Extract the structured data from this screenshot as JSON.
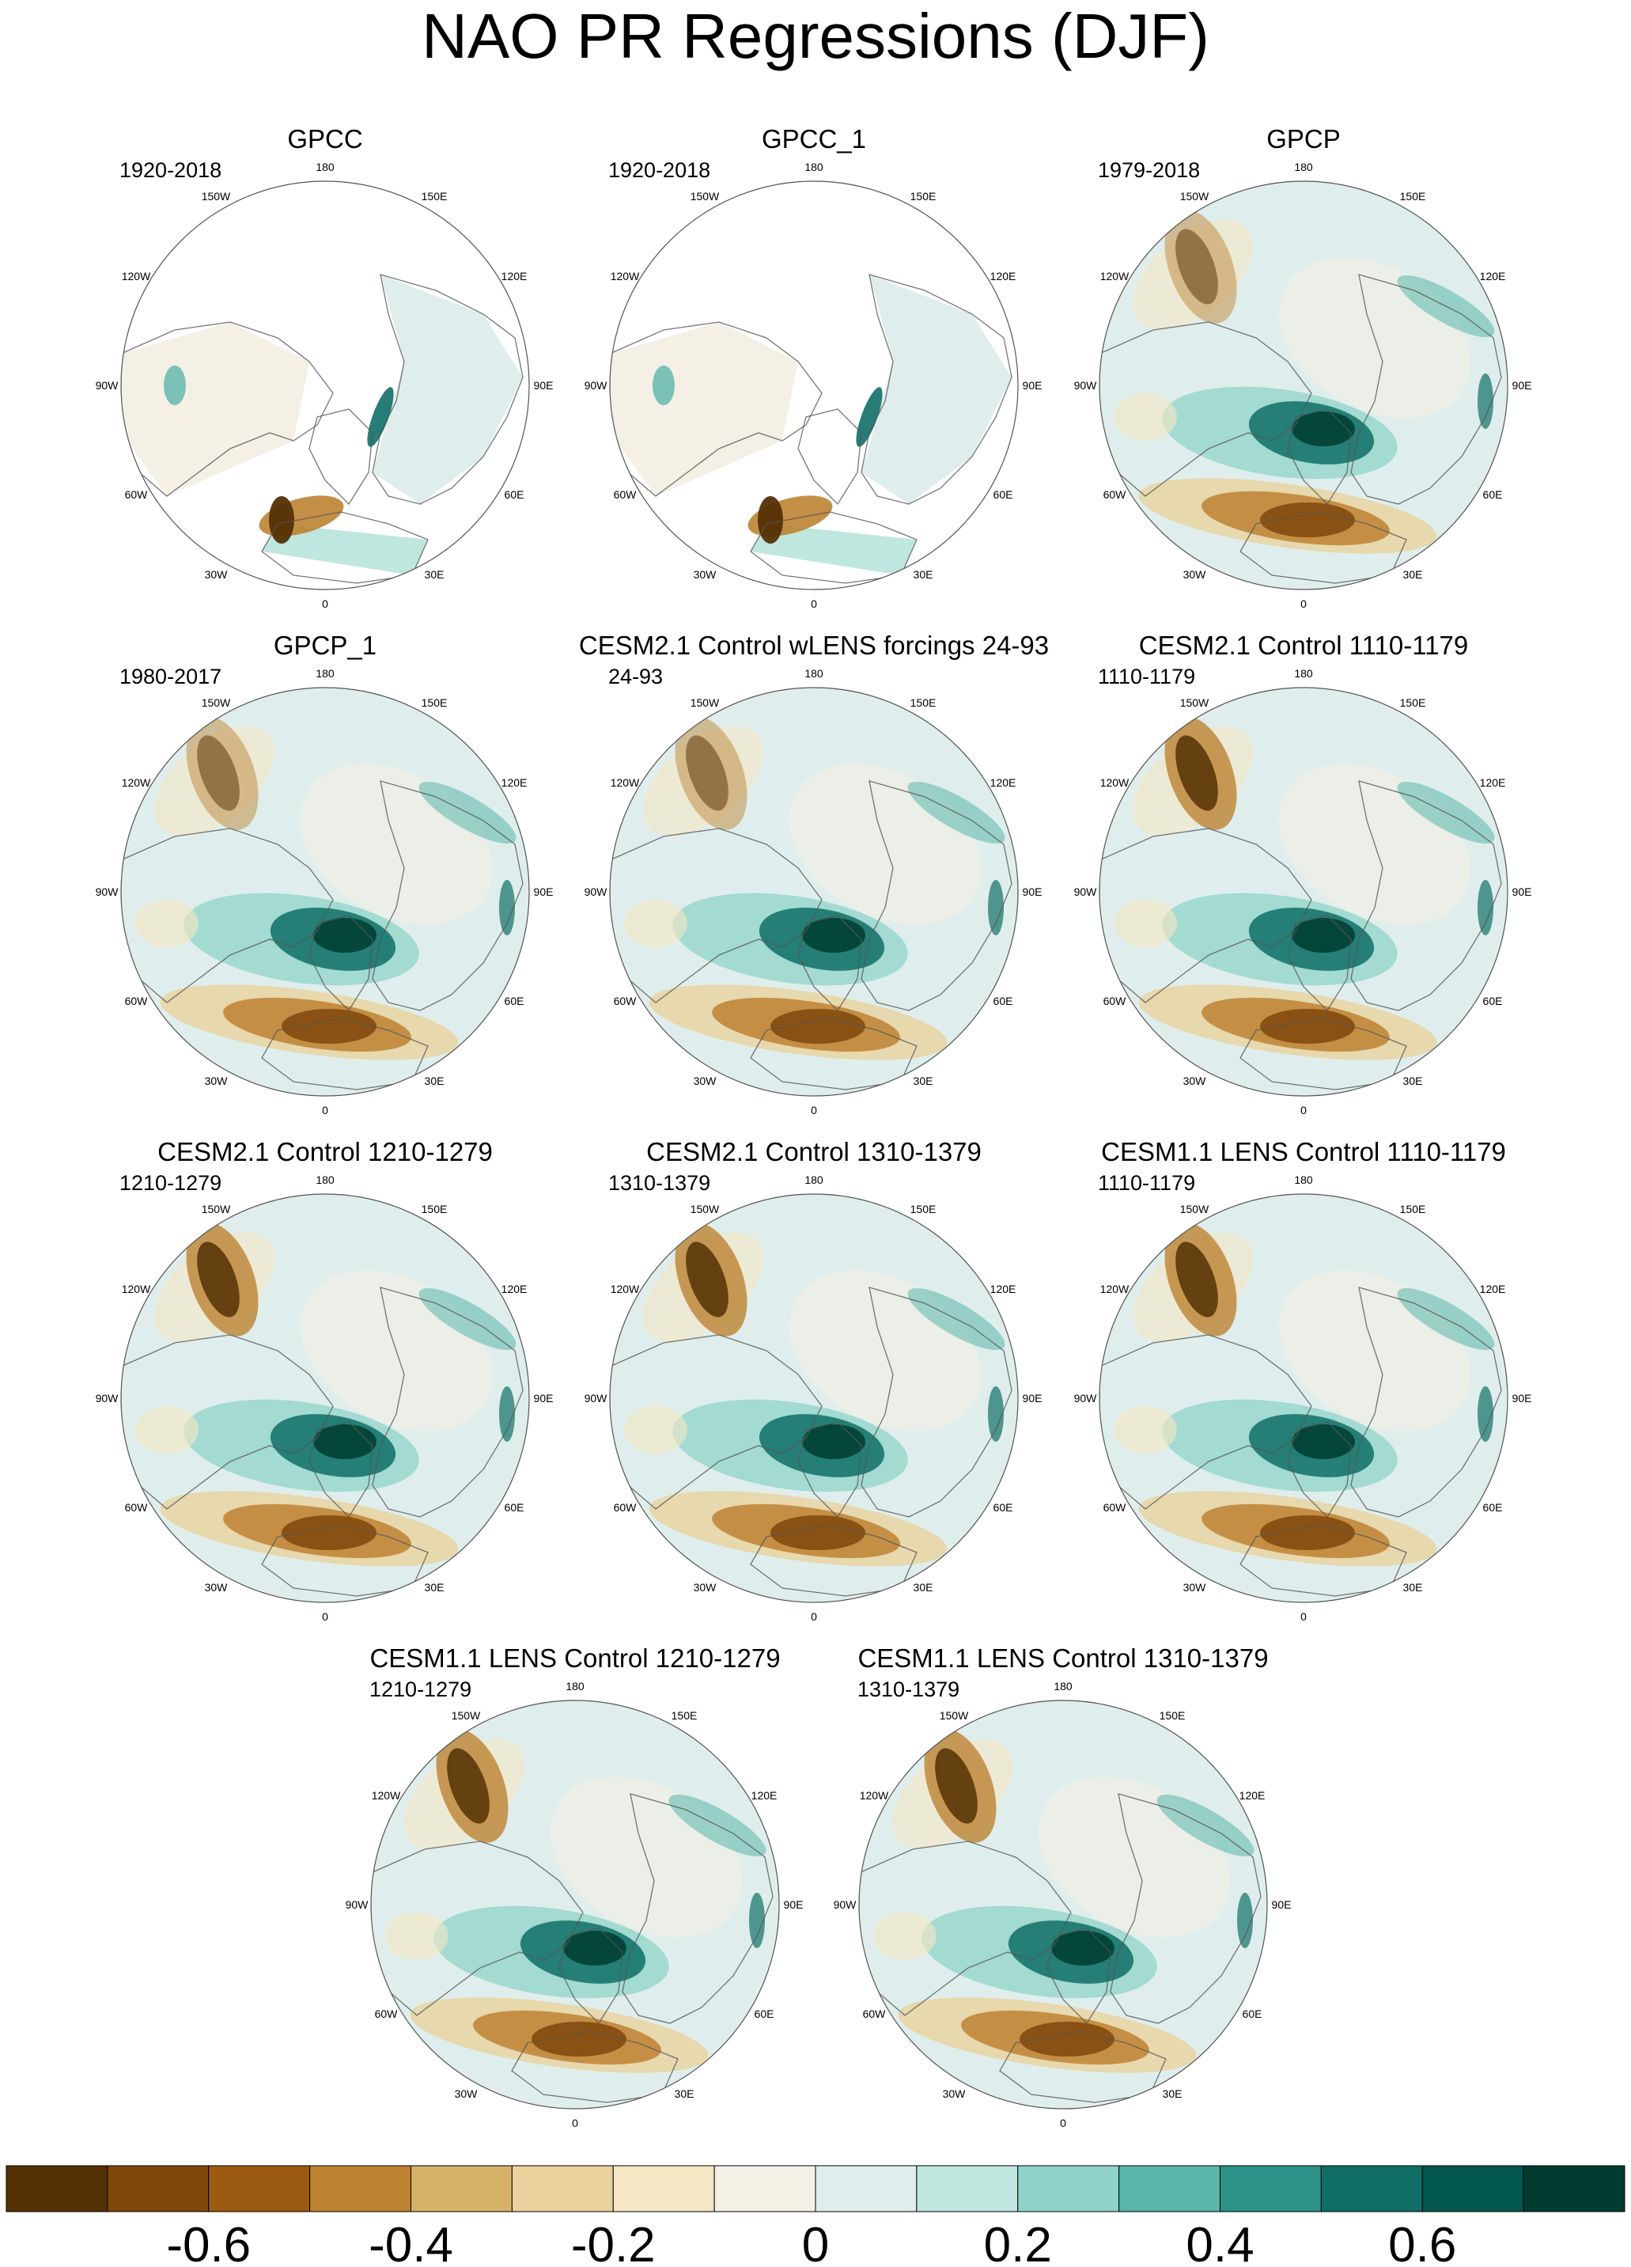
{
  "title": "NAO PR Regressions (DJF)",
  "lon_labels": [
    "180",
    "150E",
    "120E",
    "90E",
    "60E",
    "30E",
    "0",
    "30W",
    "60W",
    "90W",
    "120W",
    "150W"
  ],
  "panels": [
    {
      "name": "GPCC",
      "period": "1920-2018",
      "obs": true,
      "land_only": true
    },
    {
      "name": "GPCC_1",
      "period": "1920-2018",
      "obs": true,
      "land_only": true
    },
    {
      "name": "GPCP",
      "period": "1979-2018",
      "obs": true,
      "land_only": false
    },
    {
      "name": "GPCP_1",
      "period": "1980-2017",
      "obs": true,
      "land_only": false
    },
    {
      "name": "CESM2.1 Control wLENS forcings 24-93",
      "period": "24-93",
      "obs": false,
      "land_only": false
    },
    {
      "name": "CESM2.1 Control 1110-1179",
      "period": "1110-1179",
      "obs": false,
      "land_only": false
    },
    {
      "name": "CESM2.1 Control 1210-1279",
      "period": "1210-1279",
      "obs": false,
      "land_only": false
    },
    {
      "name": "CESM2.1 Control 1310-1379",
      "period": "1310-1379",
      "obs": false,
      "land_only": false
    },
    {
      "name": "CESM1.1 LENS Control 1110-1179",
      "period": "1110-1179",
      "obs": false,
      "land_only": false
    },
    {
      "name": "CESM1.1 LENS Control 1210-1279",
      "period": "1210-1279",
      "obs": false,
      "land_only": false
    },
    {
      "name": "CESM1.1 LENS Control 1310-1379",
      "period": "1310-1379",
      "obs": false,
      "land_only": false
    }
  ],
  "colorbar": {
    "colors": [
      "#543005",
      "#7f470a",
      "#9c5b10",
      "#bd8232",
      "#d6b16a",
      "#e9d29d",
      "#f5e7c3",
      "#f4f0e6",
      "#dfeeec",
      "#bfe6df",
      "#8fd3c8",
      "#5ab6a9",
      "#2d9187",
      "#0f6f66",
      "#01564d",
      "#003c30"
    ],
    "tick_labels": [
      "-0.6",
      "-0.4",
      "-0.2",
      "0",
      "0.2",
      "0.4",
      "0.6"
    ],
    "tick_values": [
      -0.6,
      -0.4,
      -0.2,
      0,
      0.2,
      0.4,
      0.6
    ],
    "min": -0.8,
    "max": 0.8
  }
}
